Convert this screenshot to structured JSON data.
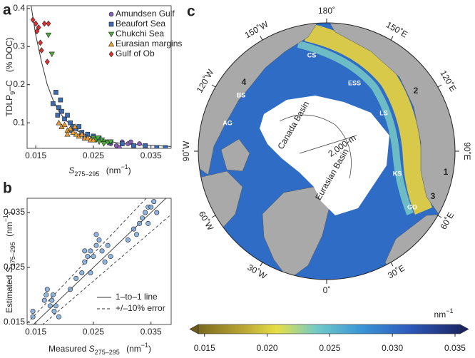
{
  "chart_data": [
    {
      "type": "scatter",
      "panel": "a",
      "ylabel": {
        "main": "TDLP",
        "sub": "9",
        "rest": "–C",
        "unit": "(% DOC)"
      },
      "xlabel": {
        "symbol": "S",
        "sub": "275–295",
        "unit": "(nm",
        "sup": "−1",
        "close": ")"
      },
      "xlim": [
        0.0135,
        0.0385
      ],
      "xticks": [
        0.015,
        0.025,
        0.035
      ],
      "ylim": [
        0.033,
        0.407
      ],
      "yticks": [
        0.1,
        0.2,
        0.3,
        0.4
      ],
      "legend": "upper right",
      "series": [
        {
          "name": "Amundsen Gulf",
          "color": "#8a5fb5",
          "marker": "circle",
          "x": [
            0.028,
            0.029,
            0.03,
            0.031,
            0.032,
            0.033,
            0.034,
            0.0295,
            0.0315
          ],
          "values": [
            0.045,
            0.04,
            0.05,
            0.045,
            0.04,
            0.045,
            0.04,
            0.035,
            0.05
          ]
        },
        {
          "name": "Beaufort Sea",
          "color": "#3d6bb3",
          "marker": "square",
          "x": [
            0.018,
            0.0185,
            0.019,
            0.0195,
            0.02,
            0.0205,
            0.021,
            0.0215,
            0.022,
            0.0225,
            0.023,
            0.024,
            0.025,
            0.026,
            0.028,
            0.03,
            0.032,
            0.034,
            0.036,
            0.0375,
            0.0193,
            0.0188,
            0.0212,
            0.0235
          ],
          "values": [
            0.15,
            0.18,
            0.14,
            0.13,
            0.11,
            0.12,
            0.1,
            0.09,
            0.085,
            0.09,
            0.075,
            0.07,
            0.065,
            0.06,
            0.05,
            0.045,
            0.04,
            0.04,
            0.035,
            0.035,
            0.16,
            0.12,
            0.08,
            0.06
          ]
        },
        {
          "name": "Chukchi Sea",
          "color": "#4caf3a",
          "marker": "triangle-down",
          "x": [
            0.0178,
            0.0172,
            0.025,
            0.0255,
            0.026,
            0.0265,
            0.027,
            0.0275,
            0.028,
            0.0258,
            0.0268
          ],
          "values": [
            0.28,
            0.33,
            0.06,
            0.055,
            0.05,
            0.055,
            0.05,
            0.048,
            0.05,
            0.06,
            0.045
          ]
        },
        {
          "name": "Eurasian margins",
          "color": "#f0a030",
          "marker": "triangle",
          "x": [
            0.019,
            0.0195,
            0.02,
            0.0205,
            0.021,
            0.0215,
            0.022,
            0.0225,
            0.023,
            0.0235,
            0.024,
            0.0245,
            0.025,
            0.0205,
            0.0218
          ],
          "values": [
            0.1,
            0.09,
            0.095,
            0.08,
            0.085,
            0.075,
            0.07,
            0.065,
            0.07,
            0.06,
            0.06,
            0.055,
            0.055,
            0.07,
            0.09
          ]
        },
        {
          "name": "Gulf of Ob",
          "color": "#e03030",
          "marker": "diamond",
          "x": [
            0.0145,
            0.015,
            0.0152,
            0.0155,
            0.016,
            0.0165,
            0.017,
            0.0158,
            0.0172
          ],
          "values": [
            0.37,
            0.36,
            0.34,
            0.35,
            0.29,
            0.36,
            0.26,
            0.31,
            0.36
          ]
        }
      ],
      "fit": {
        "x": [
          0.0142,
          0.015,
          0.016,
          0.017,
          0.018,
          0.019,
          0.02,
          0.022,
          0.025,
          0.03,
          0.0385
        ],
        "values": [
          0.407,
          0.33,
          0.26,
          0.2,
          0.16,
          0.13,
          0.11,
          0.08,
          0.06,
          0.045,
          0.038
        ]
      }
    },
    {
      "type": "scatter",
      "panel": "b",
      "ylabel": {
        "prefix": "Estimated ",
        "symbol": "S",
        "sub": "275–295",
        "unit": "(nm",
        "sup": "−1",
        "close": ")"
      },
      "xlabel": {
        "prefix": "Measured ",
        "symbol": "S",
        "sub": "275–295",
        "unit": "(nm",
        "sup": "−1",
        "close": ")"
      },
      "xlim": [
        0.0135,
        0.0385
      ],
      "xticks": [
        0.015,
        0.025,
        0.035
      ],
      "ylim": [
        0.0146,
        0.0376
      ],
      "yticks": [
        0.015,
        0.025,
        0.035
      ],
      "legend": "lower right",
      "series": [
        {
          "color": "#6a9bd1",
          "marker": "circle",
          "x": [
            0.0145,
            0.0145,
            0.0165,
            0.0168,
            0.017,
            0.0175,
            0.0178,
            0.018,
            0.0182,
            0.0185,
            0.019,
            0.021,
            0.022,
            0.023,
            0.0235,
            0.024,
            0.0245,
            0.025,
            0.0255,
            0.026,
            0.0265,
            0.027,
            0.0275,
            0.028,
            0.0245,
            0.0255,
            0.0235,
            0.031,
            0.032,
            0.033,
            0.0335,
            0.034,
            0.0345,
            0.035,
            0.0355,
            0.036,
            0.0325,
            0.0345
          ],
          "values": [
            0.016,
            0.017,
            0.019,
            0.02,
            0.021,
            0.018,
            0.019,
            0.02,
            0.017,
            0.018,
            0.016,
            0.021,
            0.023,
            0.024,
            0.026,
            0.027,
            0.028,
            0.027,
            0.029,
            0.03,
            0.028,
            0.026,
            0.029,
            0.027,
            0.024,
            0.031,
            0.028,
            0.03,
            0.032,
            0.033,
            0.034,
            0.035,
            0.036,
            0.036,
            0.037,
            0.035,
            0.031,
            0.033
          ]
        }
      ],
      "lines": [
        {
          "name": "1–to–1 line",
          "style": "solid"
        },
        {
          "name": "+/–10% error",
          "style": "dashed"
        }
      ],
      "error_fraction": 0.1
    }
  ],
  "map": {
    "panel": "c",
    "graticule": [
      "180˚",
      "150˚E",
      "120˚E",
      "90˚E",
      "60˚E",
      "30˚E",
      "0˚",
      "30˚W",
      "60˚W",
      "90˚W",
      "120˚W",
      "150˚W"
    ],
    "regions": [
      "CS",
      "ESS",
      "LS",
      "KS",
      "GO",
      "BS",
      "AG"
    ],
    "basins": [
      "Canada Basin",
      "Eurasian Basin"
    ],
    "isobath": "2,000-m",
    "sites": [
      "1",
      "2",
      "3",
      "4"
    ]
  },
  "colorbar": {
    "lim": [
      0.0145,
      0.0354
    ],
    "ticks": [
      0.015,
      {
        "value": 0.02,
        "label": "0.020"
      },
      0.025,
      {
        "value": 0.03,
        "label": "0.030"
      },
      0.035
    ],
    "unit": {
      "main": "nm",
      "sup": "−1"
    }
  }
}
